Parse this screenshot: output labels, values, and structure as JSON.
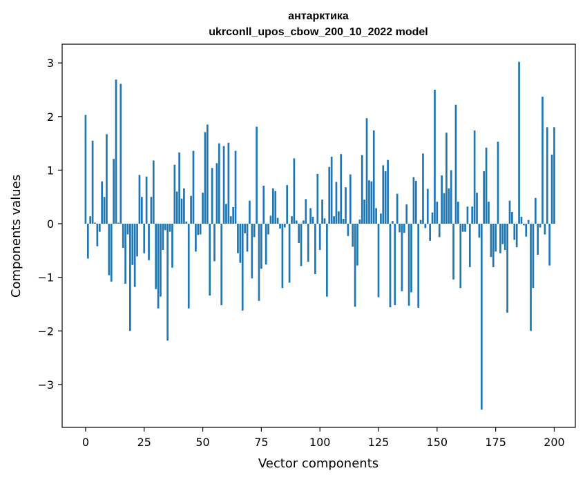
{
  "chart_data": {
    "type": "bar",
    "title_line1": "антарктика",
    "title_line2": "ukrconll_upos_cbow_200_10_2022 model",
    "xlabel": "Vector components",
    "ylabel": "Components values",
    "xlim": [
      -10,
      209
    ],
    "ylim": [
      -3.8,
      3.35
    ],
    "xticks": [
      0,
      25,
      50,
      75,
      100,
      125,
      150,
      175,
      200
    ],
    "yticks": [
      -3,
      -2,
      -1,
      0,
      1,
      2,
      3
    ],
    "xtick_labels": [
      "0",
      "25",
      "50",
      "75",
      "100",
      "125",
      "150",
      "175",
      "200"
    ],
    "ytick_labels": [
      "−3",
      "−2",
      "−1",
      "0",
      "1",
      "2",
      "3"
    ],
    "grid": false,
    "bar_color": "#1f77b4",
    "values": [
      2.03,
      -0.65,
      0.14,
      1.55,
      0.02,
      -0.42,
      -0.15,
      0.79,
      0.5,
      1.67,
      -0.96,
      -1.08,
      1.21,
      2.69,
      0.02,
      2.61,
      -0.45,
      -1.12,
      -0.2,
      -2.0,
      -0.77,
      -1.18,
      -0.61,
      0.91,
      0.5,
      -0.55,
      0.88,
      -0.68,
      0.5,
      1.18,
      -1.22,
      -1.58,
      -1.36,
      -0.49,
      -0.12,
      -2.18,
      -0.15,
      -0.82,
      1.1,
      0.6,
      1.33,
      0.47,
      0.66,
      0.04,
      -1.58,
      0.52,
      1.36,
      -0.52,
      -0.21,
      -0.2,
      0.58,
      1.71,
      1.85,
      -1.34,
      1.04,
      -0.7,
      1.13,
      1.5,
      -1.52,
      1.45,
      0.37,
      1.51,
      0.14,
      0.31,
      1.36,
      -0.55,
      -0.73,
      -1.62,
      -0.18,
      -0.52,
      0.43,
      -1.02,
      -0.25,
      1.81,
      -1.44,
      -0.84,
      0.71,
      -0.76,
      -0.2,
      0.15,
      0.66,
      0.61,
      0.11,
      -0.09,
      -1.2,
      -0.07,
      0.72,
      -1.1,
      0.14,
      1.22,
      0.06,
      -0.36,
      -0.79,
      0.06,
      0.46,
      -0.71,
      0.29,
      0.13,
      -0.94,
      0.93,
      -0.49,
      0.45,
      0.1,
      -1.36,
      1.06,
      1.25,
      0.14,
      0.78,
      0.23,
      1.3,
      0.09,
      0.68,
      -0.23,
      0.92,
      -0.43,
      -1.55,
      -0.78,
      0.08,
      1.28,
      0.45,
      1.97,
      0.81,
      0.79,
      1.74,
      0.29,
      -1.37,
      0.19,
      1.09,
      0.98,
      1.19,
      -1.56,
      0.05,
      -1.52,
      0.56,
      -0.16,
      -1.26,
      -0.17,
      0.36,
      -1.53,
      -1.28,
      0.87,
      0.8,
      -1.57,
      0.07,
      1.31,
      -0.08,
      0.65,
      -0.32,
      0.21,
      2.5,
      0.41,
      -0.25,
      0.9,
      0.57,
      1.7,
      0.66,
      1.0,
      -1.04,
      2.22,
      0.41,
      -1.2,
      -0.15,
      -0.15,
      0.32,
      -0.81,
      0.32,
      1.74,
      0.58,
      -0.26,
      -3.47,
      0.98,
      1.42,
      0.41,
      -0.62,
      -0.81,
      -0.52,
      1.53,
      -0.55,
      -0.38,
      -0.49,
      -1.66,
      0.43,
      0.22,
      -0.3,
      -0.44,
      3.02,
      0.13,
      -0.03,
      -0.24,
      0.07,
      -2.0,
      -1.2,
      0.48,
      -0.58,
      -0.07,
      2.37,
      -0.2,
      1.8,
      -0.78,
      1.29,
      1.8
    ]
  }
}
